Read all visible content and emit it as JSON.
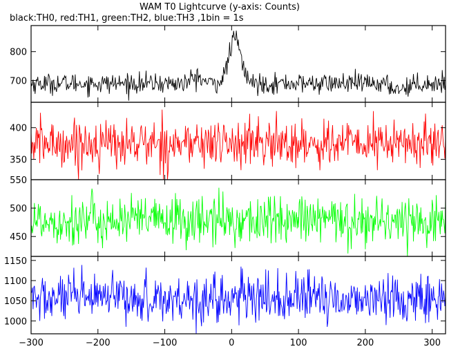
{
  "title": "WAM T0 Lightcurve (y-axis: Counts)",
  "subtitle": "black:TH0, red:TH1, green:TH2, blue:TH3 ,1bin = 1s",
  "chart_data": {
    "type": "line",
    "title": "WAM T0 Lightcurve (y-axis: Counts)",
    "subtitle": "black:TH0, red:TH1, green:TH2, blue:TH3 ,1bin = 1s",
    "xlim": [
      -300,
      320
    ],
    "x_ticks": [
      -300,
      -200,
      -100,
      0,
      100,
      200,
      300
    ],
    "x_tick_labels": [
      "−300",
      "−200",
      "−100",
      "0",
      "100",
      "200",
      "300"
    ],
    "bin_seconds": 1,
    "panels": [
      {
        "name": "TH0",
        "color": "#000000",
        "ylim": [
          625,
          890
        ],
        "y_ticks": [
          700,
          800
        ],
        "y_tick_labels": [
          "700",
          "800"
        ],
        "baseline": 690,
        "noise_sd": 17,
        "features": [
          {
            "kind": "gaussian",
            "x": 5,
            "height": 155,
            "width": 9
          },
          {
            "kind": "gaussian",
            "x": -52,
            "height": 22,
            "width": 8
          },
          {
            "kind": "gaussian",
            "x": 250,
            "height": -18,
            "width": 12
          }
        ]
      },
      {
        "name": "TH1",
        "color": "#ff0000",
        "ylim": [
          318,
          440
        ],
        "y_ticks": [
          350,
          400
        ],
        "y_tick_labels": [
          "350",
          "400"
        ],
        "baseline": 375,
        "noise_sd": 19,
        "features": []
      },
      {
        "name": "TH2",
        "color": "#00ff00",
        "ylim": [
          415,
          550
        ],
        "y_ticks": [
          450,
          500,
          550
        ],
        "y_tick_labels": [
          "450",
          "500",
          "550"
        ],
        "baseline": 478,
        "noise_sd": 22,
        "features": []
      },
      {
        "name": "TH3",
        "color": "#0000ff",
        "ylim": [
          968,
          1160
        ],
        "y_ticks": [
          1000,
          1050,
          1100,
          1150
        ],
        "y_tick_labels": [
          "1000",
          "1050",
          "1100",
          "1150"
        ],
        "baseline": 1055,
        "noise_sd": 30,
        "features": []
      }
    ]
  }
}
